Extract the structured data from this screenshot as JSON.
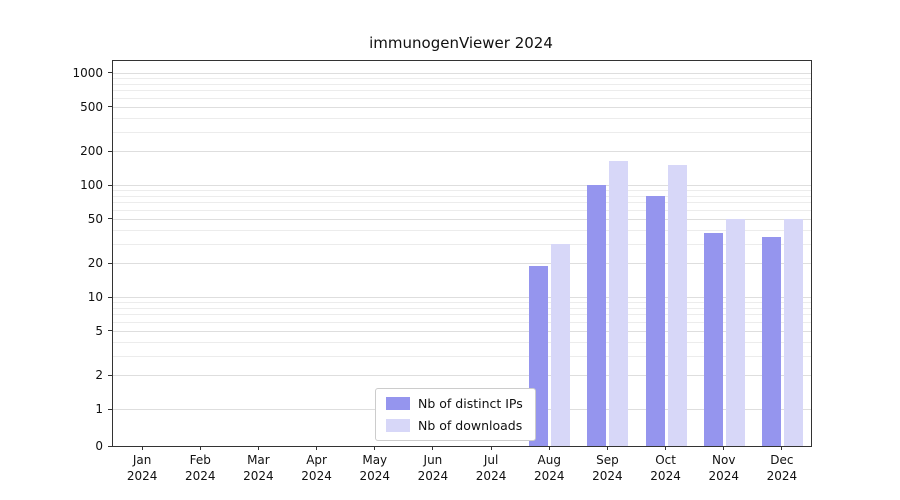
{
  "chart_data": {
    "type": "bar",
    "title": "immunogenViewer 2024",
    "categories": [
      "Jan 2024",
      "Feb 2024",
      "Mar 2024",
      "Apr 2024",
      "May 2024",
      "Jun 2024",
      "Jul 2024",
      "Aug 2024",
      "Sep 2024",
      "Oct 2024",
      "Nov 2024",
      "Dec 2024"
    ],
    "series": [
      {
        "name": "Nb of distinct IPs",
        "color": "#9595ee",
        "values": [
          0,
          0,
          0,
          0,
          0,
          0,
          0,
          19,
          100,
          80,
          37,
          34
        ]
      },
      {
        "name": "Nb of downloads",
        "color": "#d7d7f8",
        "values": [
          0,
          0,
          0,
          0,
          0,
          0,
          0,
          30,
          165,
          150,
          50,
          50
        ]
      }
    ],
    "yscale": "symlog",
    "y_ticks": [
      0,
      1,
      2,
      5,
      10,
      20,
      50,
      100,
      200,
      500,
      1000
    ],
    "ylim": [
      0,
      1280
    ],
    "xlabel": "",
    "ylabel": "",
    "grid": true,
    "legend_position": "lower center"
  }
}
